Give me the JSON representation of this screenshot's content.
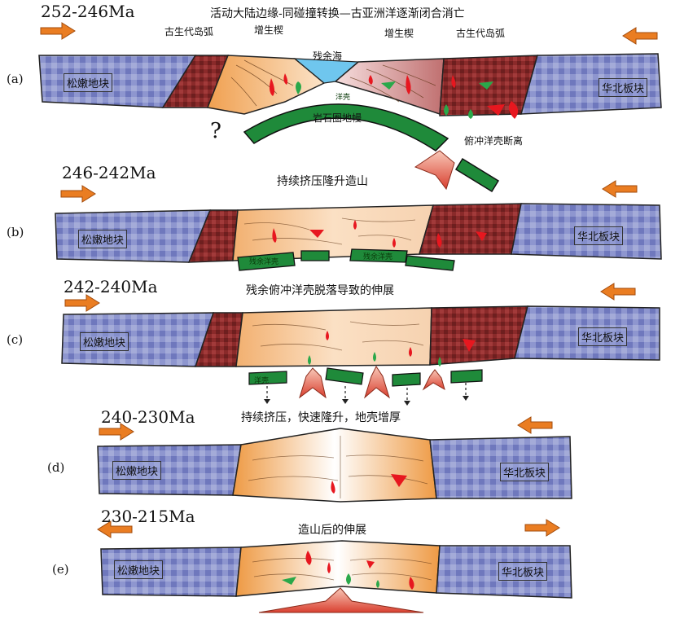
{
  "panels": [
    {
      "label": "(a)",
      "age": "252-246Ma",
      "title": "活动大陆边缘-同碰撞转换—古亚洲洋逐渐闭合消亡",
      "left_block": "松嫩地块",
      "right_block": "华北板块",
      "annotations": {
        "arc_left": "古生代岛弧",
        "wedge_left": "增生楔",
        "sea": "残余海",
        "wedge_right": "增生楔",
        "arc_right": "古生代岛弧",
        "slab": "洋壳",
        "mantle": "岩石圈地幔",
        "question": "?",
        "breakoff": "俯冲洋壳断离"
      }
    },
    {
      "label": "(b)",
      "age": "246-242Ma",
      "title": "持续挤压隆升造山",
      "left_block": "松嫩地块",
      "right_block": "华北板块",
      "annotations": {
        "slab_left": "残余洋壳",
        "slab_right": "残余洋壳"
      }
    },
    {
      "label": "(c)",
      "age": "242-240Ma",
      "title": "残余俯冲洋壳脱落导致的伸展",
      "left_block": "松嫩地块",
      "right_block": "华北板块",
      "annotations": {
        "slab": "洋壳"
      }
    },
    {
      "label": "(d)",
      "age": "240-230Ma",
      "title": "持续挤压，快速隆升，地壳增厚",
      "left_block": "松嫩地块",
      "right_block": "华北板块"
    },
    {
      "label": "(e)",
      "age": "230-215Ma",
      "title": "造山后的伸展",
      "left_block": "松嫩地块",
      "right_block": "华北板块"
    }
  ],
  "colors": {
    "block": "#7f88c6",
    "arc": "#8a2a2a",
    "wedge": "#f3b57a",
    "slab": "#1f8a3a",
    "magma": "#e7171f",
    "arrow": "#ea7d22",
    "sea": "#6fc6ee"
  }
}
